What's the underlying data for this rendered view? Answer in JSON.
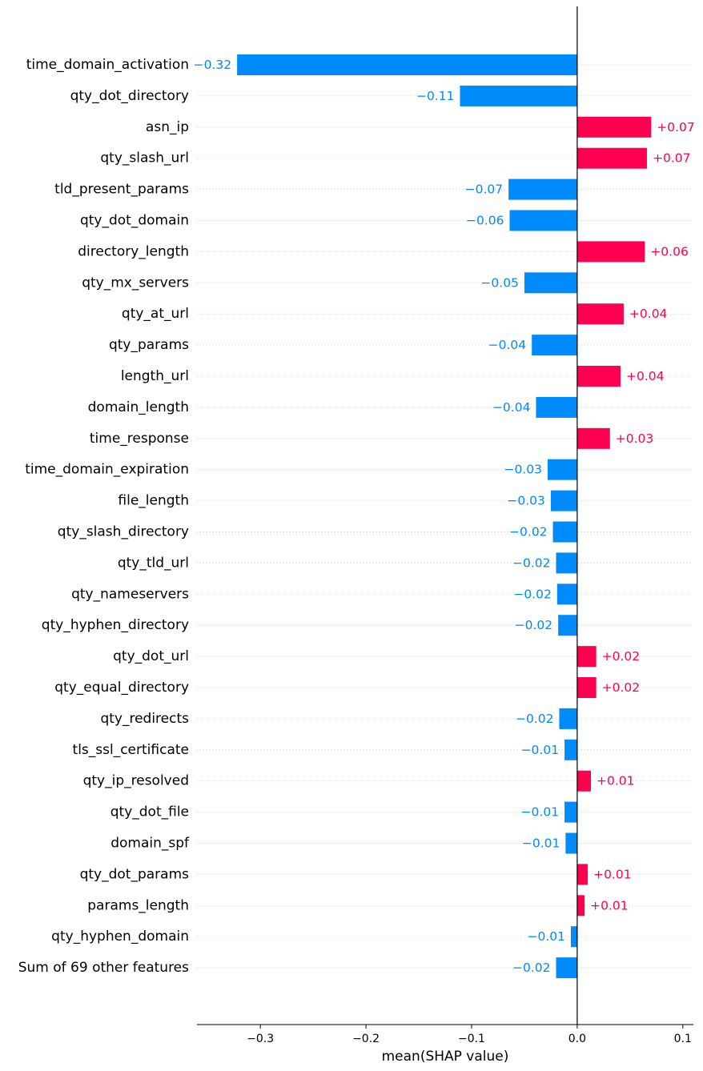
{
  "chart_data": {
    "type": "bar",
    "orientation": "horizontal",
    "xlabel": "mean(SHAP value)",
    "xlim": [
      -0.36,
      0.11
    ],
    "xticks": [
      -0.3,
      -0.2,
      -0.1,
      0.0,
      0.1
    ],
    "xtick_labels": [
      "−0.3",
      "−0.2",
      "−0.1",
      "0.0",
      "0.1"
    ],
    "positive_color": "#ff0051",
    "negative_color": "#008bfb",
    "features": [
      {
        "name": "time_domain_activation",
        "value": -0.322,
        "label": "−0.32"
      },
      {
        "name": "qty_dot_directory",
        "value": -0.111,
        "label": "−0.11"
      },
      {
        "name": "asn_ip",
        "value": 0.07,
        "label": "+0.07"
      },
      {
        "name": "qty_slash_url",
        "value": 0.066,
        "label": "+0.07"
      },
      {
        "name": "tld_present_params",
        "value": -0.065,
        "label": "−0.07"
      },
      {
        "name": "qty_dot_domain",
        "value": -0.064,
        "label": "−0.06"
      },
      {
        "name": "directory_length",
        "value": 0.064,
        "label": "+0.06"
      },
      {
        "name": "qty_mx_servers",
        "value": -0.05,
        "label": "−0.05"
      },
      {
        "name": "qty_at_url",
        "value": 0.044,
        "label": "+0.04"
      },
      {
        "name": "qty_params",
        "value": -0.043,
        "label": "−0.04"
      },
      {
        "name": "length_url",
        "value": 0.041,
        "label": "+0.04"
      },
      {
        "name": "domain_length",
        "value": -0.039,
        "label": "−0.04"
      },
      {
        "name": "time_response",
        "value": 0.031,
        "label": "+0.03"
      },
      {
        "name": "time_domain_expiration",
        "value": -0.028,
        "label": "−0.03"
      },
      {
        "name": "file_length",
        "value": -0.025,
        "label": "−0.03"
      },
      {
        "name": "qty_slash_directory",
        "value": -0.023,
        "label": "−0.02"
      },
      {
        "name": "qty_tld_url",
        "value": -0.02,
        "label": "−0.02"
      },
      {
        "name": "qty_nameservers",
        "value": -0.019,
        "label": "−0.02"
      },
      {
        "name": "qty_hyphen_directory",
        "value": -0.018,
        "label": "−0.02"
      },
      {
        "name": "qty_dot_url",
        "value": 0.018,
        "label": "+0.02"
      },
      {
        "name": "qty_equal_directory",
        "value": 0.018,
        "label": "+0.02"
      },
      {
        "name": "qty_redirects",
        "value": -0.017,
        "label": "−0.02"
      },
      {
        "name": "tls_ssl_certificate",
        "value": -0.012,
        "label": "−0.01"
      },
      {
        "name": "qty_ip_resolved",
        "value": 0.013,
        "label": "+0.01"
      },
      {
        "name": "qty_dot_file",
        "value": -0.012,
        "label": "−0.01"
      },
      {
        "name": "domain_spf",
        "value": -0.011,
        "label": "−0.01"
      },
      {
        "name": "qty_dot_params",
        "value": 0.01,
        "label": "+0.01"
      },
      {
        "name": "params_length",
        "value": 0.007,
        "label": "+0.01"
      },
      {
        "name": "qty_hyphen_domain",
        "value": -0.006,
        "label": "−0.01"
      },
      {
        "name": "Sum of 69 other features",
        "value": -0.02,
        "label": "−0.02"
      }
    ]
  }
}
